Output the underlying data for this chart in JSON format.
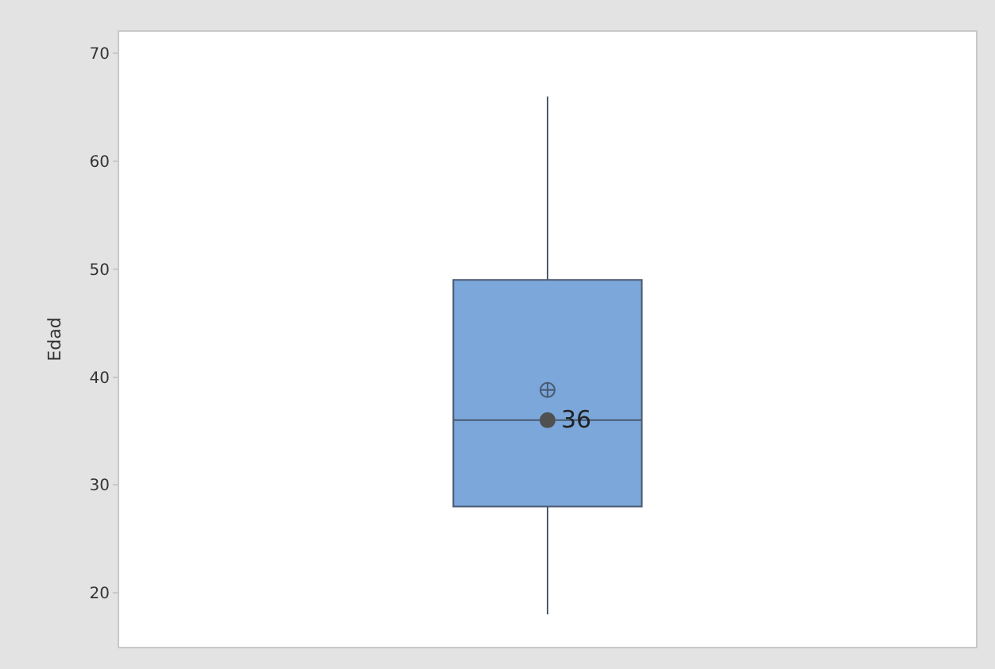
{
  "chart_data": {
    "type": "box",
    "ylabel": "Edad",
    "categories": [
      null
    ],
    "ylim": [
      15,
      72
    ],
    "yticks": [
      20,
      30,
      40,
      50,
      60,
      70
    ],
    "grid": false,
    "series": [
      {
        "color": "#7ba7db",
        "boxes": [
          {
            "low": 18,
            "q1": 28,
            "median": 36,
            "q3": 49,
            "high": 66,
            "mean": 38.8
          }
        ]
      },
      {
        "type": "scatter",
        "color": "#505050",
        "marker": "circle",
        "values": [
          36
        ]
      }
    ],
    "annotations": [
      {
        "text": "36",
        "y": 36
      }
    ]
  }
}
